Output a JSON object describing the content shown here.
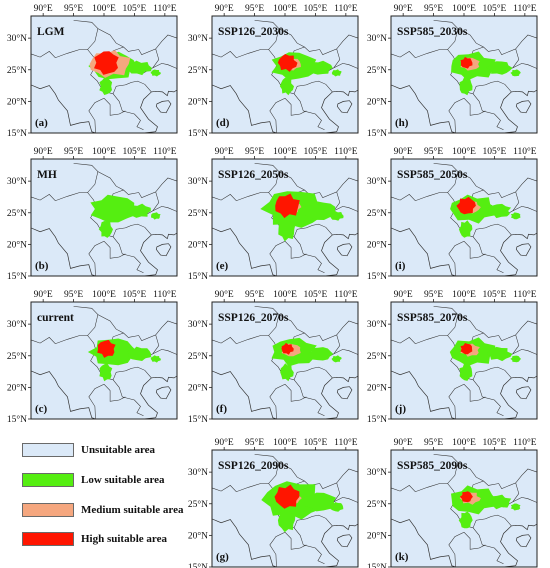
{
  "figure": {
    "ocean_color": "#dbe9f8",
    "land_fill": "#dbe9f8",
    "border_color": "#333333",
    "class_colors": {
      "low": "#55ee11",
      "medium": "#f5a77f",
      "high": "#ff1500"
    },
    "lon_ticks": [
      "90°E",
      "95°E",
      "100°E",
      "105°E",
      "110°E"
    ],
    "lat_ticks": [
      "30°N",
      "25°N",
      "20°N",
      "15°N"
    ],
    "panels": [
      {
        "letter": "(a)",
        "title": "LGM",
        "suitability": {
          "high": "large",
          "medium": "large",
          "low": "medium"
        }
      },
      {
        "letter": "(b)",
        "title": "MH",
        "suitability": {
          "high": "none",
          "medium": "none",
          "low": "medium"
        }
      },
      {
        "letter": "(c)",
        "title": "current",
        "suitability": {
          "high": "medium",
          "medium": "none",
          "low": "medium"
        }
      },
      {
        "letter": "(d)",
        "title": "SSP126_2030s",
        "suitability": {
          "high": "medium",
          "medium": "small",
          "low": "medium"
        }
      },
      {
        "letter": "(e)",
        "title": "SSP126_2050s",
        "suitability": {
          "high": "large",
          "medium": "small",
          "low": "large"
        }
      },
      {
        "letter": "(f)",
        "title": "SSP126_2070s",
        "suitability": {
          "high": "small",
          "medium": "small",
          "low": "medium"
        }
      },
      {
        "letter": "(g)",
        "title": "SSP126_2090s",
        "suitability": {
          "high": "large",
          "medium": "small",
          "low": "large"
        }
      },
      {
        "letter": "(h)",
        "title": "SSP585_2030s",
        "suitability": {
          "high": "small",
          "medium": "small",
          "low": "medium"
        }
      },
      {
        "letter": "(i)",
        "title": "SSP585_2050s",
        "suitability": {
          "high": "medium",
          "medium": "small",
          "low": "medium"
        }
      },
      {
        "letter": "(j)",
        "title": "SSP585_2070s",
        "suitability": {
          "high": "small",
          "medium": "small",
          "low": "medium"
        }
      },
      {
        "letter": "(k)",
        "title": "SSP585_2090s",
        "suitability": {
          "high": "small",
          "medium": "small",
          "low": "medium"
        }
      }
    ]
  },
  "legend": {
    "items": [
      {
        "label": "Unsuitable area",
        "color": "#dbe9f8"
      },
      {
        "label": "Low suitable area",
        "color": "#55ee11"
      },
      {
        "label": "Medium suitable area",
        "color": "#f5a77f"
      },
      {
        "label": "High suitable area",
        "color": "#ff1500"
      }
    ]
  }
}
